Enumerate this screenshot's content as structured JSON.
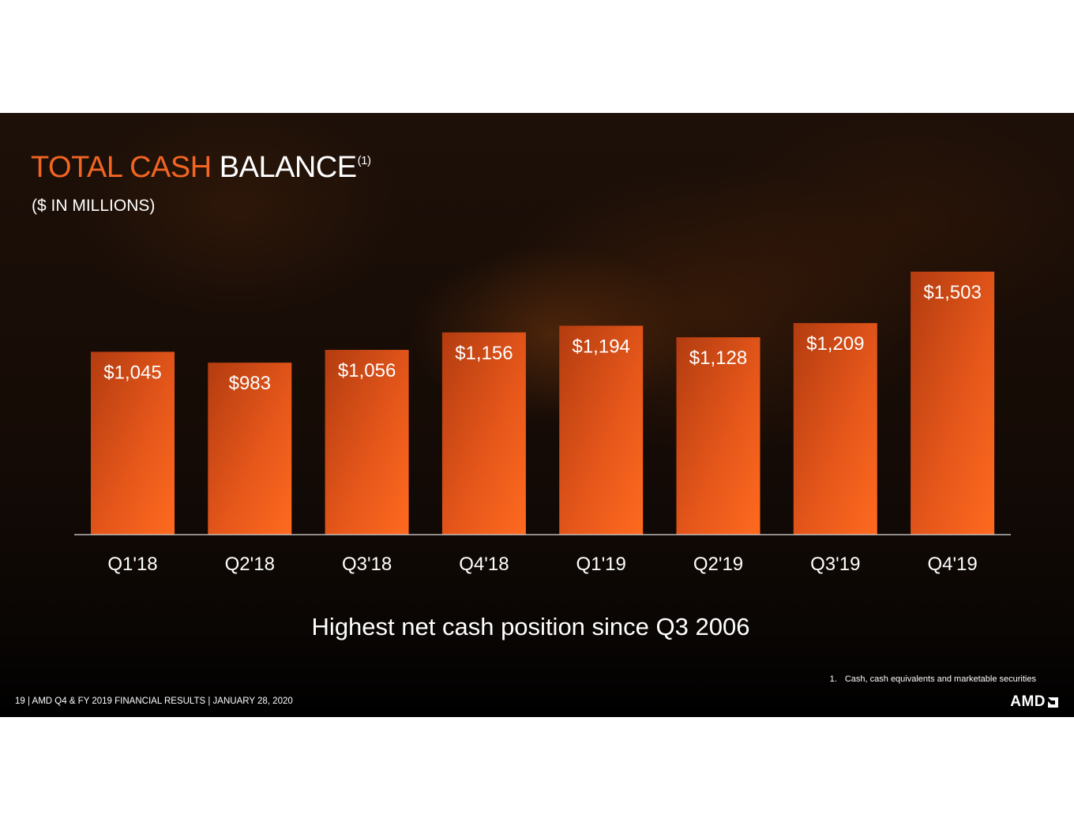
{
  "header": {
    "title_accent": "TOTAL CASH",
    "title_main": "BALANCE",
    "title_sup": "(1)",
    "subtitle": "($ IN MILLIONS)"
  },
  "chart_data": {
    "type": "bar",
    "categories": [
      "Q1'18",
      "Q2'18",
      "Q3'18",
      "Q4'18",
      "Q1'19",
      "Q2'19",
      "Q3'19",
      "Q4'19"
    ],
    "values": [
      1045,
      983,
      1056,
      1156,
      1194,
      1128,
      1209,
      1503
    ],
    "data_labels": [
      "$1,045",
      "$983",
      "$1,056",
      "$1,156",
      "$1,194",
      "$1,128",
      "$1,209",
      "$1,503"
    ],
    "ylim": [
      0,
      1503
    ],
    "grid": false,
    "bar_color": "#f26522"
  },
  "callout": "Highest net cash position since Q3 2006",
  "footnote": {
    "number": "1.",
    "text": "Cash, cash equivalents and marketable securities"
  },
  "footer": {
    "page_info": "19  | AMD Q4 & FY 2019 FINANCIAL RESULTS | JANUARY 28, 2020",
    "logo_text": "AMD"
  }
}
